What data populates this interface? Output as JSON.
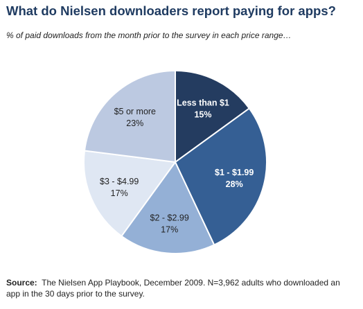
{
  "chart_data": {
    "type": "pie",
    "title": "What do Nielsen downloaders report paying for apps?",
    "subtitle": "% of paid downloads from the month prior to the survey in each price range…",
    "slices": [
      {
        "label": "Less than $1",
        "value": 15,
        "value_label": "15%",
        "color": "#243c60",
        "text_color": "#ffffff",
        "bold": true
      },
      {
        "label": "$1 - $1.99",
        "value": 28,
        "value_label": "28%",
        "color": "#355f94",
        "text_color": "#ffffff",
        "bold": true
      },
      {
        "label": "$2 - $2.99",
        "value": 17,
        "value_label": "17%",
        "color": "#94b0d6",
        "text_color": "#222222",
        "bold": false
      },
      {
        "label": "$3 - $4.99",
        "value": 17,
        "value_label": "17%",
        "color": "#dfe7f3",
        "text_color": "#222222",
        "bold": false
      },
      {
        "label": "$5 or more",
        "value": 23,
        "value_label": "23%",
        "color": "#bcc9e1",
        "text_color": "#222222",
        "bold": false
      }
    ],
    "start": "12 o'clock",
    "direction": "clockwise",
    "legend": "none"
  },
  "source": {
    "label": "Source:",
    "text": "The Nielsen App Playbook, December 2009. N=3,962 adults who downloaded an app in the 30 days prior to the survey."
  }
}
